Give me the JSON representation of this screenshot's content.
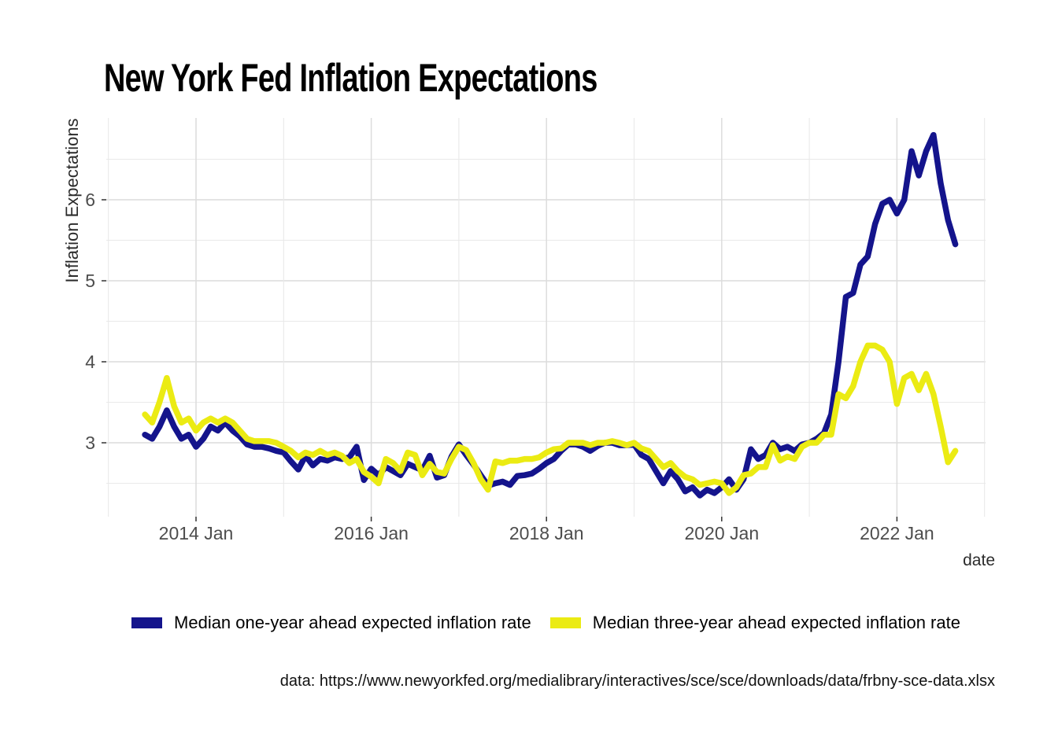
{
  "title": "New York Fed Inflation Expectations",
  "axes": {
    "y_label": "Inflation Expectations",
    "x_label": "date",
    "y_tick_labels": [
      "3",
      "4",
      "5",
      "6"
    ],
    "x_tick_labels": [
      "2014 Jan",
      "2016 Jan",
      "2018 Jan",
      "2020 Jan",
      "2022 Jan"
    ]
  },
  "caption": "data: https://www.newyorkfed.org/medialibrary/interactives/sce/sce/downloads/data/frbny-sce-data.xlsx",
  "colors": {
    "one_year_line": "#14148c",
    "three_year_line": "#ebeb13",
    "grid_major": "#dcdcdc",
    "grid_minor": "#e9e9e9",
    "tick_text": "#4d4d4d",
    "tick_mark": "#333333",
    "background": "#ffffff"
  },
  "chart_data": {
    "type": "line",
    "title": "New York Fed Inflation Expectations",
    "xlabel": "date",
    "ylabel": "Inflation Expectations",
    "legend_position": "bottom",
    "grid": true,
    "y_major_ticks": [
      3,
      4,
      5,
      6
    ],
    "y_minor_ticks": [
      2.5,
      3.5,
      4.5,
      5.5,
      6.5
    ],
    "x_grid_years": [
      2013,
      2014,
      2015,
      2016,
      2017,
      2018,
      2019,
      2020,
      2021,
      2022,
      2023
    ],
    "x_major_years": [
      2014,
      2016,
      2018,
      2020,
      2022
    ],
    "ylim": [
      2.1,
      7.0
    ],
    "xlim_years": [
      2013.0,
      2023.0
    ],
    "x": [
      "2013-06",
      "2013-07",
      "2013-08",
      "2013-09",
      "2013-10",
      "2013-11",
      "2013-12",
      "2014-01",
      "2014-02",
      "2014-03",
      "2014-04",
      "2014-05",
      "2014-06",
      "2014-07",
      "2014-08",
      "2014-09",
      "2014-10",
      "2014-11",
      "2014-12",
      "2015-01",
      "2015-02",
      "2015-03",
      "2015-04",
      "2015-05",
      "2015-06",
      "2015-07",
      "2015-08",
      "2015-09",
      "2015-10",
      "2015-11",
      "2015-12",
      "2016-01",
      "2016-02",
      "2016-03",
      "2016-04",
      "2016-05",
      "2016-06",
      "2016-07",
      "2016-08",
      "2016-09",
      "2016-10",
      "2016-11",
      "2016-12",
      "2017-01",
      "2017-02",
      "2017-03",
      "2017-04",
      "2017-05",
      "2017-06",
      "2017-07",
      "2017-08",
      "2017-09",
      "2017-10",
      "2017-11",
      "2017-12",
      "2018-01",
      "2018-02",
      "2018-03",
      "2018-04",
      "2018-05",
      "2018-06",
      "2018-07",
      "2018-08",
      "2018-09",
      "2018-10",
      "2018-11",
      "2018-12",
      "2019-01",
      "2019-02",
      "2019-03",
      "2019-04",
      "2019-05",
      "2019-06",
      "2019-07",
      "2019-08",
      "2019-09",
      "2019-10",
      "2019-11",
      "2019-12",
      "2020-01",
      "2020-02",
      "2020-03",
      "2020-04",
      "2020-05",
      "2020-06",
      "2020-07",
      "2020-08",
      "2020-09",
      "2020-10",
      "2020-11",
      "2020-12",
      "2021-01",
      "2021-02",
      "2021-03",
      "2021-04",
      "2021-05",
      "2021-06",
      "2021-07",
      "2021-08",
      "2021-09",
      "2021-10",
      "2021-11",
      "2021-12",
      "2022-01",
      "2022-02",
      "2022-03",
      "2022-04",
      "2022-05",
      "2022-06",
      "2022-07",
      "2022-08",
      "2022-09"
    ],
    "series": [
      {
        "name": "Median one-year ahead expected inflation rate",
        "color": "#14148c",
        "values": [
          3.1,
          3.05,
          3.2,
          3.4,
          3.2,
          3.05,
          3.1,
          2.95,
          3.05,
          3.2,
          3.15,
          3.25,
          3.15,
          3.08,
          2.98,
          2.95,
          2.95,
          2.93,
          2.9,
          2.88,
          2.77,
          2.67,
          2.84,
          2.72,
          2.8,
          2.78,
          2.82,
          2.8,
          2.82,
          2.95,
          2.54,
          2.68,
          2.6,
          2.7,
          2.65,
          2.6,
          2.74,
          2.7,
          2.66,
          2.84,
          2.57,
          2.6,
          2.83,
          2.98,
          2.85,
          2.73,
          2.6,
          2.47,
          2.5,
          2.52,
          2.48,
          2.59,
          2.6,
          2.62,
          2.68,
          2.75,
          2.8,
          2.9,
          2.98,
          2.98,
          2.95,
          2.9,
          2.96,
          3.0,
          3.0,
          2.97,
          2.97,
          2.98,
          2.85,
          2.8,
          2.65,
          2.5,
          2.65,
          2.55,
          2.4,
          2.45,
          2.35,
          2.42,
          2.38,
          2.45,
          2.55,
          2.42,
          2.55,
          2.92,
          2.8,
          2.85,
          3.0,
          2.92,
          2.95,
          2.9,
          2.98,
          3.0,
          3.05,
          3.12,
          3.35,
          4.0,
          4.8,
          4.85,
          5.2,
          5.3,
          5.7,
          5.95,
          6.0,
          5.83,
          6.0,
          6.6,
          6.3,
          6.6,
          6.8,
          6.2,
          5.75,
          5.45
        ]
      },
      {
        "name": "Median three-year ahead expected inflation rate",
        "color": "#ebeb13",
        "values": [
          3.35,
          3.25,
          3.5,
          3.8,
          3.45,
          3.25,
          3.3,
          3.15,
          3.25,
          3.3,
          3.25,
          3.3,
          3.25,
          3.15,
          3.05,
          3.02,
          3.02,
          3.02,
          3.0,
          2.95,
          2.9,
          2.82,
          2.88,
          2.85,
          2.9,
          2.85,
          2.88,
          2.84,
          2.75,
          2.8,
          2.64,
          2.58,
          2.5,
          2.8,
          2.75,
          2.65,
          2.88,
          2.85,
          2.6,
          2.74,
          2.64,
          2.62,
          2.8,
          2.95,
          2.91,
          2.75,
          2.55,
          2.42,
          2.77,
          2.75,
          2.78,
          2.78,
          2.8,
          2.8,
          2.82,
          2.88,
          2.92,
          2.93,
          3.0,
          3.0,
          3.0,
          2.97,
          3.0,
          3.0,
          3.02,
          3.0,
          2.97,
          3.0,
          2.93,
          2.9,
          2.8,
          2.7,
          2.75,
          2.65,
          2.58,
          2.55,
          2.48,
          2.5,
          2.52,
          2.5,
          2.38,
          2.45,
          2.6,
          2.62,
          2.7,
          2.7,
          2.97,
          2.78,
          2.83,
          2.8,
          2.95,
          3.0,
          3.0,
          3.1,
          3.1,
          3.6,
          3.55,
          3.7,
          4.0,
          4.2,
          4.2,
          4.15,
          4.0,
          3.48,
          3.8,
          3.85,
          3.65,
          3.85,
          3.6,
          3.2,
          2.76,
          2.9
        ]
      }
    ]
  }
}
